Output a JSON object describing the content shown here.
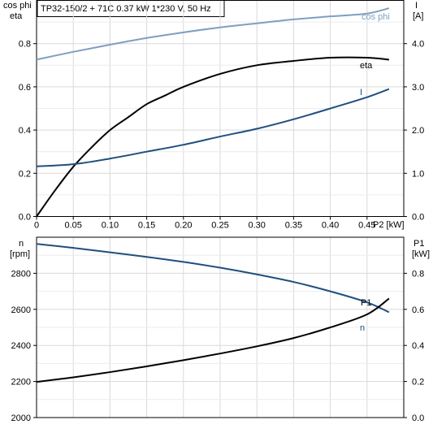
{
  "header": {
    "title": "TP32-150/2 + 71C   0.37 kW   1*230 V, 50 Hz"
  },
  "chart_data": [
    {
      "type": "line",
      "x_axis": {
        "label": "P2 [kW]",
        "range": [
          0,
          0.5
        ],
        "ticks": [
          "0",
          "0.05",
          "0.10",
          "0.15",
          "0.20",
          "0.25",
          "0.30",
          "0.35",
          "0.40",
          "0.45"
        ],
        "tick_values": [
          0,
          0.05,
          0.1,
          0.15,
          0.2,
          0.25,
          0.3,
          0.35,
          0.4,
          0.45
        ]
      },
      "left_axis": {
        "label_line1": "cos phi",
        "label_line2": "eta",
        "range": [
          0,
          1.0
        ],
        "ticks": [
          "0.0",
          "0.2",
          "0.4",
          "0.6",
          "0.8"
        ],
        "tick_values": [
          0,
          0.2,
          0.4,
          0.6,
          0.8
        ]
      },
      "right_axis": {
        "label_line1": "I",
        "label_line2": "[A]",
        "range": [
          0,
          5.0
        ],
        "ticks": [
          "0.0",
          "1.0",
          "2.0",
          "3.0",
          "4.0"
        ],
        "tick_values": [
          0,
          1,
          2,
          3,
          4
        ]
      },
      "grid": true,
      "series": [
        {
          "name": "cos phi",
          "axis": "left",
          "color": "#7f9fbf",
          "x": [
            0,
            0.05,
            0.1,
            0.15,
            0.2,
            0.25,
            0.3,
            0.35,
            0.4,
            0.45,
            0.48
          ],
          "y": [
            0.726,
            0.762,
            0.795,
            0.826,
            0.852,
            0.875,
            0.894,
            0.912,
            0.926,
            0.939,
            0.964
          ]
        },
        {
          "name": "eta",
          "axis": "left",
          "color": "#000000",
          "x": [
            0,
            0.025,
            0.05,
            0.075,
            0.1,
            0.125,
            0.15,
            0.175,
            0.2,
            0.25,
            0.3,
            0.35,
            0.4,
            0.45,
            0.48
          ],
          "y": [
            0.0,
            0.12,
            0.23,
            0.32,
            0.4,
            0.46,
            0.52,
            0.56,
            0.6,
            0.66,
            0.7,
            0.72,
            0.735,
            0.735,
            0.726
          ]
        },
        {
          "name": "I",
          "axis": "right",
          "color": "#1f4f7f",
          "x": [
            0,
            0.05,
            0.1,
            0.15,
            0.2,
            0.25,
            0.3,
            0.35,
            0.4,
            0.45,
            0.48
          ],
          "y": [
            1.16,
            1.21,
            1.34,
            1.5,
            1.66,
            1.85,
            2.03,
            2.25,
            2.5,
            2.76,
            2.95
          ]
        }
      ]
    },
    {
      "type": "line",
      "x_axis": {
        "range": [
          0,
          0.5
        ]
      },
      "left_axis": {
        "label_line1": "n",
        "label_line2": "[rpm]",
        "range": [
          2000,
          3000
        ],
        "ticks": [
          "2000",
          "2200",
          "2400",
          "2600",
          "2800"
        ],
        "tick_values": [
          2000,
          2200,
          2400,
          2600,
          2800
        ]
      },
      "right_axis": {
        "label_line1": "P1",
        "label_line2": "[kW]",
        "range": [
          0,
          1.0
        ],
        "ticks": [
          "0.0",
          "0.2",
          "0.4",
          "0.6",
          "0.8"
        ],
        "tick_values": [
          0,
          0.2,
          0.4,
          0.6,
          0.8
        ]
      },
      "grid": true,
      "series": [
        {
          "name": "n",
          "axis": "left",
          "color": "#1f4f7f",
          "x": [
            0,
            0.05,
            0.1,
            0.15,
            0.2,
            0.25,
            0.3,
            0.35,
            0.4,
            0.45,
            0.48
          ],
          "y": [
            2963,
            2941,
            2916,
            2891,
            2863,
            2831,
            2794,
            2752,
            2700,
            2639,
            2584
          ]
        },
        {
          "name": "P1",
          "axis": "right",
          "color": "#000000",
          "x": [
            0,
            0.05,
            0.1,
            0.15,
            0.2,
            0.25,
            0.3,
            0.35,
            0.4,
            0.45,
            0.48
          ],
          "y": [
            0.198,
            0.223,
            0.252,
            0.284,
            0.318,
            0.355,
            0.395,
            0.441,
            0.5,
            0.572,
            0.66
          ]
        }
      ]
    }
  ]
}
